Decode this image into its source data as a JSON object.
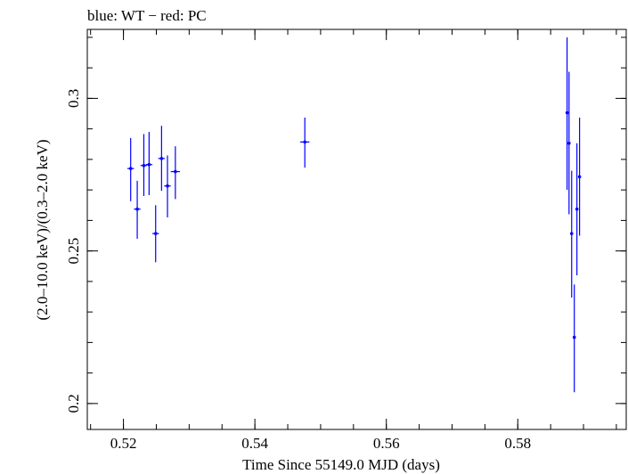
{
  "chart_data": {
    "type": "scatter",
    "title": "blue: WT − red: PC",
    "xlabel": "Time Since 55149.0 MJD (days)",
    "ylabel": "(2.0–10.0 keV)/(0.3–2.0 keV)",
    "xlim": [
      0.5145,
      0.5965
    ],
    "ylim": [
      0.1915,
      0.3226
    ],
    "x_ticks": [
      {
        "value": 0.52,
        "label": "0.52"
      },
      {
        "value": 0.54,
        "label": "0.54"
      },
      {
        "value": 0.56,
        "label": "0.56"
      },
      {
        "value": 0.58,
        "label": "0.58"
      }
    ],
    "y_ticks": [
      {
        "value": 0.2,
        "label": "0.2"
      },
      {
        "value": 0.25,
        "label": "0.25"
      },
      {
        "value": 0.3,
        "label": "0.3"
      }
    ],
    "x_minor_step": 0.005,
    "y_minor_step": 0.01,
    "series": [
      {
        "name": "WT",
        "color": "#0000ff",
        "points": [
          {
            "x": 0.5211,
            "y": 0.277,
            "xerr": 0.0005,
            "ylo": 0.2663,
            "yhi": 0.287
          },
          {
            "x": 0.5221,
            "y": 0.2637,
            "xerr": 0.0005,
            "ylo": 0.254,
            "yhi": 0.273
          },
          {
            "x": 0.5231,
            "y": 0.278,
            "xerr": 0.0005,
            "ylo": 0.268,
            "yhi": 0.2883
          },
          {
            "x": 0.5239,
            "y": 0.2783,
            "xerr": 0.0005,
            "ylo": 0.2683,
            "yhi": 0.289
          },
          {
            "x": 0.5249,
            "y": 0.2557,
            "xerr": 0.0005,
            "ylo": 0.2463,
            "yhi": 0.265
          },
          {
            "x": 0.5258,
            "y": 0.2803,
            "xerr": 0.0005,
            "ylo": 0.2697,
            "yhi": 0.291
          },
          {
            "x": 0.5267,
            "y": 0.2713,
            "xerr": 0.0005,
            "ylo": 0.261,
            "yhi": 0.2813
          },
          {
            "x": 0.5279,
            "y": 0.276,
            "xerr": 0.0007,
            "ylo": 0.267,
            "yhi": 0.2843
          },
          {
            "x": 0.5476,
            "y": 0.2857,
            "xerr": 0.0007,
            "ylo": 0.2773,
            "yhi": 0.2937
          },
          {
            "x": 0.5875,
            "y": 0.2953,
            "xerr": 0.0001,
            "ylo": 0.27,
            "yhi": 0.32
          },
          {
            "x": 0.5878,
            "y": 0.2853,
            "xerr": 0.0001,
            "ylo": 0.262,
            "yhi": 0.3087
          },
          {
            "x": 0.5882,
            "y": 0.2557,
            "xerr": 0.0001,
            "ylo": 0.2347,
            "yhi": 0.2763
          },
          {
            "x": 0.5886,
            "y": 0.2217,
            "xerr": 0.0001,
            "ylo": 0.2037,
            "yhi": 0.239
          },
          {
            "x": 0.589,
            "y": 0.2637,
            "xerr": 0.0001,
            "ylo": 0.242,
            "yhi": 0.2853
          },
          {
            "x": 0.5894,
            "y": 0.2743,
            "xerr": 0.0001,
            "ylo": 0.255,
            "yhi": 0.2937
          }
        ]
      }
    ]
  }
}
